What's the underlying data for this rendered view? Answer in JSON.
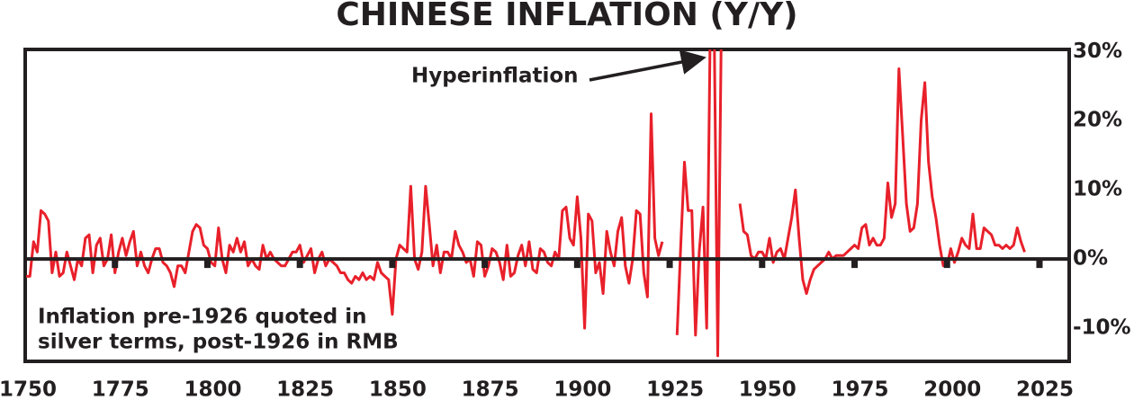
{
  "chart_data": {
    "type": "line",
    "title": "CHINESE INFLATION (Y/Y)",
    "annotation": "Hyperinflation",
    "note": [
      "Inflation pre-1926 quoted in",
      "silver terms, post-1926 in RMB"
    ],
    "xlim": [
      1750,
      2033
    ],
    "xticks": [
      1750,
      1775,
      1800,
      1825,
      1850,
      1875,
      1900,
      1925,
      1950,
      1975,
      2000,
      2025
    ],
    "ylim": [
      -14.8,
      30.3
    ],
    "yticks": [
      {
        "value": -10,
        "label": "-10%"
      },
      {
        "value": 0,
        "label": "0%"
      },
      {
        "value": 10,
        "label": "10%"
      },
      {
        "value": 20,
        "label": "20%"
      },
      {
        "value": 30,
        "label": "30%"
      }
    ],
    "x": [
      1751,
      1752,
      1753,
      1754,
      1755,
      1756,
      1757,
      1758,
      1759,
      1760,
      1761,
      1762,
      1763,
      1764,
      1765,
      1766,
      1767,
      1768,
      1769,
      1770,
      1771,
      1772,
      1773,
      1774,
      1775,
      1776,
      1777,
      1778,
      1779,
      1780,
      1781,
      1782,
      1783,
      1784,
      1785,
      1786,
      1787,
      1788,
      1789,
      1790,
      1791,
      1792,
      1793,
      1794,
      1795,
      1796,
      1797,
      1798,
      1799,
      1800,
      1801,
      1802,
      1803,
      1804,
      1805,
      1806,
      1807,
      1808,
      1809,
      1810,
      1811,
      1812,
      1813,
      1814,
      1815,
      1816,
      1817,
      1818,
      1819,
      1820,
      1821,
      1822,
      1823,
      1824,
      1825,
      1826,
      1827,
      1828,
      1829,
      1830,
      1831,
      1832,
      1833,
      1834,
      1835,
      1836,
      1837,
      1838,
      1839,
      1840,
      1841,
      1842,
      1843,
      1844,
      1845,
      1846,
      1847,
      1848,
      1849,
      1850,
      1851,
      1852,
      1853,
      1854,
      1855,
      1856,
      1857,
      1858,
      1859,
      1860,
      1861,
      1862,
      1863,
      1864,
      1865,
      1866,
      1867,
      1868,
      1869,
      1870,
      1871,
      1872,
      1873,
      1874,
      1875,
      1876,
      1877,
      1878,
      1879,
      1880,
      1881,
      1882,
      1883,
      1884,
      1885,
      1886,
      1887,
      1888,
      1889,
      1890,
      1891,
      1892,
      1893,
      1894,
      1895,
      1896,
      1897,
      1898,
      1899,
      1900,
      1901,
      1902,
      1903,
      1904,
      1905,
      1906,
      1907,
      1908,
      1909,
      1910,
      1911,
      1912,
      1913,
      1914,
      1915,
      1916,
      1917,
      1918,
      1919,
      1920,
      1921,
      1922,
      1923,
      1924,
      1925,
      1926,
      1927,
      1928,
      1929,
      1930,
      1931,
      1932,
      1933,
      1934,
      1935,
      1936,
      1937,
      1938,
      1939,
      1940,
      1941,
      1942,
      1943,
      1944,
      1945,
      1946,
      1947,
      1948,
      1949,
      1950,
      1951,
      1952,
      1953,
      1954,
      1955,
      1956,
      1957,
      1958,
      1959,
      1960,
      1961,
      1962,
      1963,
      1964,
      1965,
      1966,
      1967,
      1968,
      1969,
      1970,
      1971,
      1972,
      1973,
      1974,
      1975,
      1976,
      1977,
      1978,
      1979,
      1980,
      1981,
      1982,
      1983,
      1984,
      1985,
      1986,
      1987,
      1988,
      1989,
      1990,
      1991,
      1992,
      1993,
      1994,
      1995,
      1996,
      1997,
      1998,
      1999,
      2000,
      2001,
      2002,
      2003,
      2004,
      2005,
      2006,
      2007,
      2008,
      2009,
      2010,
      2011,
      2012,
      2013,
      2014,
      2015,
      2016,
      2017,
      2018,
      2019,
      2020,
      2021
    ],
    "series": [
      {
        "color": "#e8202a",
        "values": [
          -2.5,
          -2.5,
          2.5,
          1,
          7,
          6.5,
          5.5,
          -2,
          1,
          -2.5,
          -2,
          1,
          -1,
          -3,
          0,
          -1,
          3,
          3.5,
          -2,
          2,
          3,
          -1,
          0,
          3.5,
          -2,
          1,
          3,
          0.5,
          2.5,
          4,
          -1,
          1,
          -1,
          -2,
          0,
          1.5,
          1.5,
          -0.5,
          -1,
          -2,
          -4,
          -1,
          -1,
          -2,
          1,
          4,
          5,
          4.5,
          2,
          1.5,
          -0.5,
          -1,
          4.5,
          0,
          -2,
          2,
          1,
          3,
          1,
          2.5,
          -1,
          0,
          -1,
          -1.5,
          2,
          0,
          1,
          0,
          -0.5,
          -1,
          -1,
          0,
          1,
          1,
          2,
          -0.5,
          0.5,
          1.5,
          -2,
          0,
          1,
          -1,
          0,
          -0.5,
          -1,
          -2,
          -2,
          -3,
          -3.5,
          -2.5,
          -3,
          -2,
          -3,
          -2.5,
          -3,
          -0.5,
          -2,
          -2.5,
          -3,
          -8,
          0,
          2,
          1.5,
          1,
          10.5,
          0,
          -1.5,
          1,
          10.5,
          5,
          -1,
          2,
          -2,
          1,
          1,
          0,
          4,
          2,
          1,
          -0.5,
          0,
          -2.5,
          2.5,
          2,
          -2.5,
          -1,
          1.5,
          1,
          -0.5,
          -3,
          2,
          -2.5,
          -2,
          0.5,
          2,
          -1,
          2.5,
          -1.5,
          -2,
          1.5,
          1,
          -0.5,
          -1,
          1,
          0,
          7,
          7.5,
          3,
          2,
          9,
          3,
          -10,
          6.5,
          5.5,
          -2,
          -0.5,
          -5,
          4,
          1,
          -1,
          4,
          6,
          -1,
          -3.5,
          0,
          7,
          6.5,
          -2,
          -5.5,
          21,
          3,
          0.5,
          2.5,
          null,
          null,
          null,
          -11,
          2,
          14,
          7,
          7,
          -11,
          1,
          7.5,
          -10,
          35,
          35,
          -14,
          35,
          null,
          null,
          null,
          null,
          8,
          4,
          3.5,
          0.5,
          0,
          1,
          1,
          0,
          3,
          -0.5,
          1,
          1.5,
          0,
          3,
          6,
          10,
          3,
          -3,
          -5,
          -3,
          -1.5,
          -1,
          -0.5,
          0,
          1,
          0,
          0.5,
          0.5,
          0.5,
          1,
          1.5,
          2,
          1.5,
          4.5,
          5,
          2,
          3,
          2,
          2,
          3,
          11,
          6,
          8,
          27.5,
          18,
          8,
          4,
          4.5,
          8,
          20,
          25.5,
          14,
          9,
          6,
          2,
          -1,
          -1,
          1.5,
          -0.5,
          1,
          3,
          2,
          1.5,
          6.5,
          1.5,
          1.5,
          4.5,
          4,
          3.5,
          2,
          2,
          1.5,
          2,
          1.5,
          2,
          4.5,
          2.5,
          1
        ]
      }
    ]
  }
}
